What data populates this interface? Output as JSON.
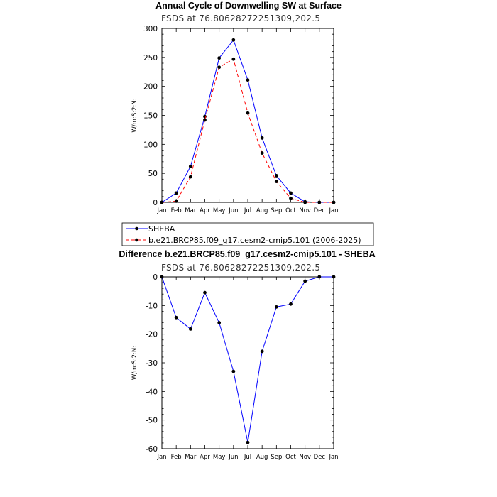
{
  "chart_data": [
    {
      "type": "line",
      "title": "Annual Cycle of Downwelling SW at Surface",
      "subtitle": "FSDS at 76.80628272251309,202.5",
      "xlabel": "",
      "ylabel": "W/m:S:2:N:",
      "categories": [
        "Jan",
        "Feb",
        "Mar",
        "Apr",
        "May",
        "Jun",
        "Jul",
        "Aug",
        "Sep",
        "Oct",
        "Nov",
        "Dec",
        "Jan"
      ],
      "ylim": [
        0,
        300
      ],
      "yticks": [
        0,
        50,
        100,
        150,
        200,
        250,
        300
      ],
      "series": [
        {
          "name": "SHEBA",
          "color": "#0000ff",
          "dash": "solid",
          "values": [
            0,
            16,
            62,
            148,
            249,
            280,
            211,
            111,
            46,
            16,
            1,
            0,
            0
          ]
        },
        {
          "name": "b.e21.BRCP85.f09_g17.cesm2-cmip5.101 (2006-2025)",
          "color": "#ff0000",
          "dash": "dashed",
          "values": [
            0,
            2,
            44,
            142,
            233,
            247,
            154,
            85,
            36,
            7,
            0,
            0,
            0
          ]
        }
      ],
      "legend": "below"
    },
    {
      "type": "line",
      "title": "Difference b.e21.BRCP85.f09_g17.cesm2-cmip5.101 - SHEBA",
      "subtitle": "FSDS at 76.80628272251309,202.5",
      "xlabel": "",
      "ylabel": "W/m:S:2:N:",
      "categories": [
        "Jan",
        "Feb",
        "Mar",
        "Apr",
        "May",
        "Jun",
        "Jul",
        "Aug",
        "Sep",
        "Oct",
        "Nov",
        "Dec",
        "Jan"
      ],
      "ylim": [
        -60,
        0
      ],
      "yticks": [
        -60,
        -50,
        -40,
        -30,
        -20,
        -10,
        0
      ],
      "series": [
        {
          "color": "#0000ff",
          "dash": "solid",
          "values": [
            0,
            -14.2,
            -18.2,
            -5.5,
            -16,
            -33,
            -57.8,
            -26,
            -10.5,
            -9.5,
            -1.5,
            0,
            0
          ]
        }
      ]
    }
  ]
}
